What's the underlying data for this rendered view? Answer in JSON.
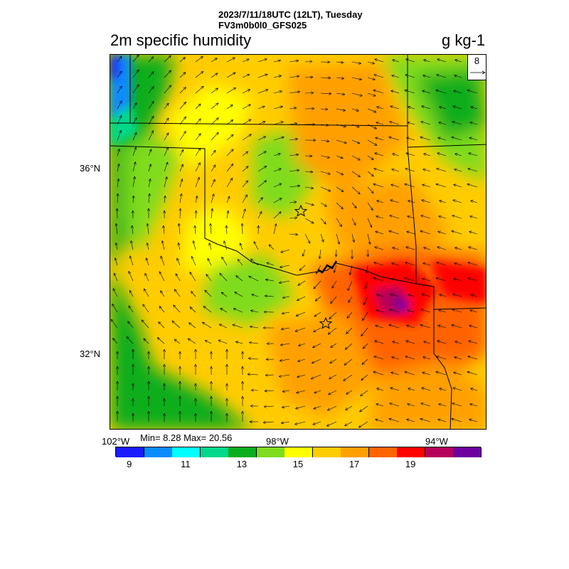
{
  "header": {
    "line1": "2023/7/11/18UTC (12LT), Tuesday",
    "line2": "FV3m0b0l0_GFS025"
  },
  "field": {
    "title": "2m specific humidity",
    "units": "g kg-1"
  },
  "axes": {
    "lat_labels": [
      "36°N",
      "32°N"
    ],
    "lon_labels": [
      "102°W",
      "98°W",
      "94°W"
    ]
  },
  "stats": {
    "text": "Min= 8.28 Max= 20.56",
    "min": 8.28,
    "max": 20.56
  },
  "reference_vector": {
    "label": "8"
  },
  "colorbar": {
    "colors": [
      "#1a1aff",
      "#0a8cff",
      "#00ffff",
      "#00d98c",
      "#0aad1e",
      "#7fdc1e",
      "#ffff00",
      "#ffcc00",
      "#ffa000",
      "#ff6400",
      "#ff0000",
      "#b4005a",
      "#6e00a0"
    ],
    "tick_labels": [
      "9",
      "11",
      "13",
      "15",
      "17",
      "19"
    ],
    "tick_values": [
      9,
      11,
      13,
      15,
      17,
      19
    ],
    "levels": [
      8,
      9,
      10,
      11,
      12,
      13,
      14,
      15,
      16,
      17,
      18,
      19,
      20,
      21
    ]
  },
  "markers": [
    {
      "name": "city-star-north"
    },
    {
      "name": "city-star-south"
    }
  ]
}
